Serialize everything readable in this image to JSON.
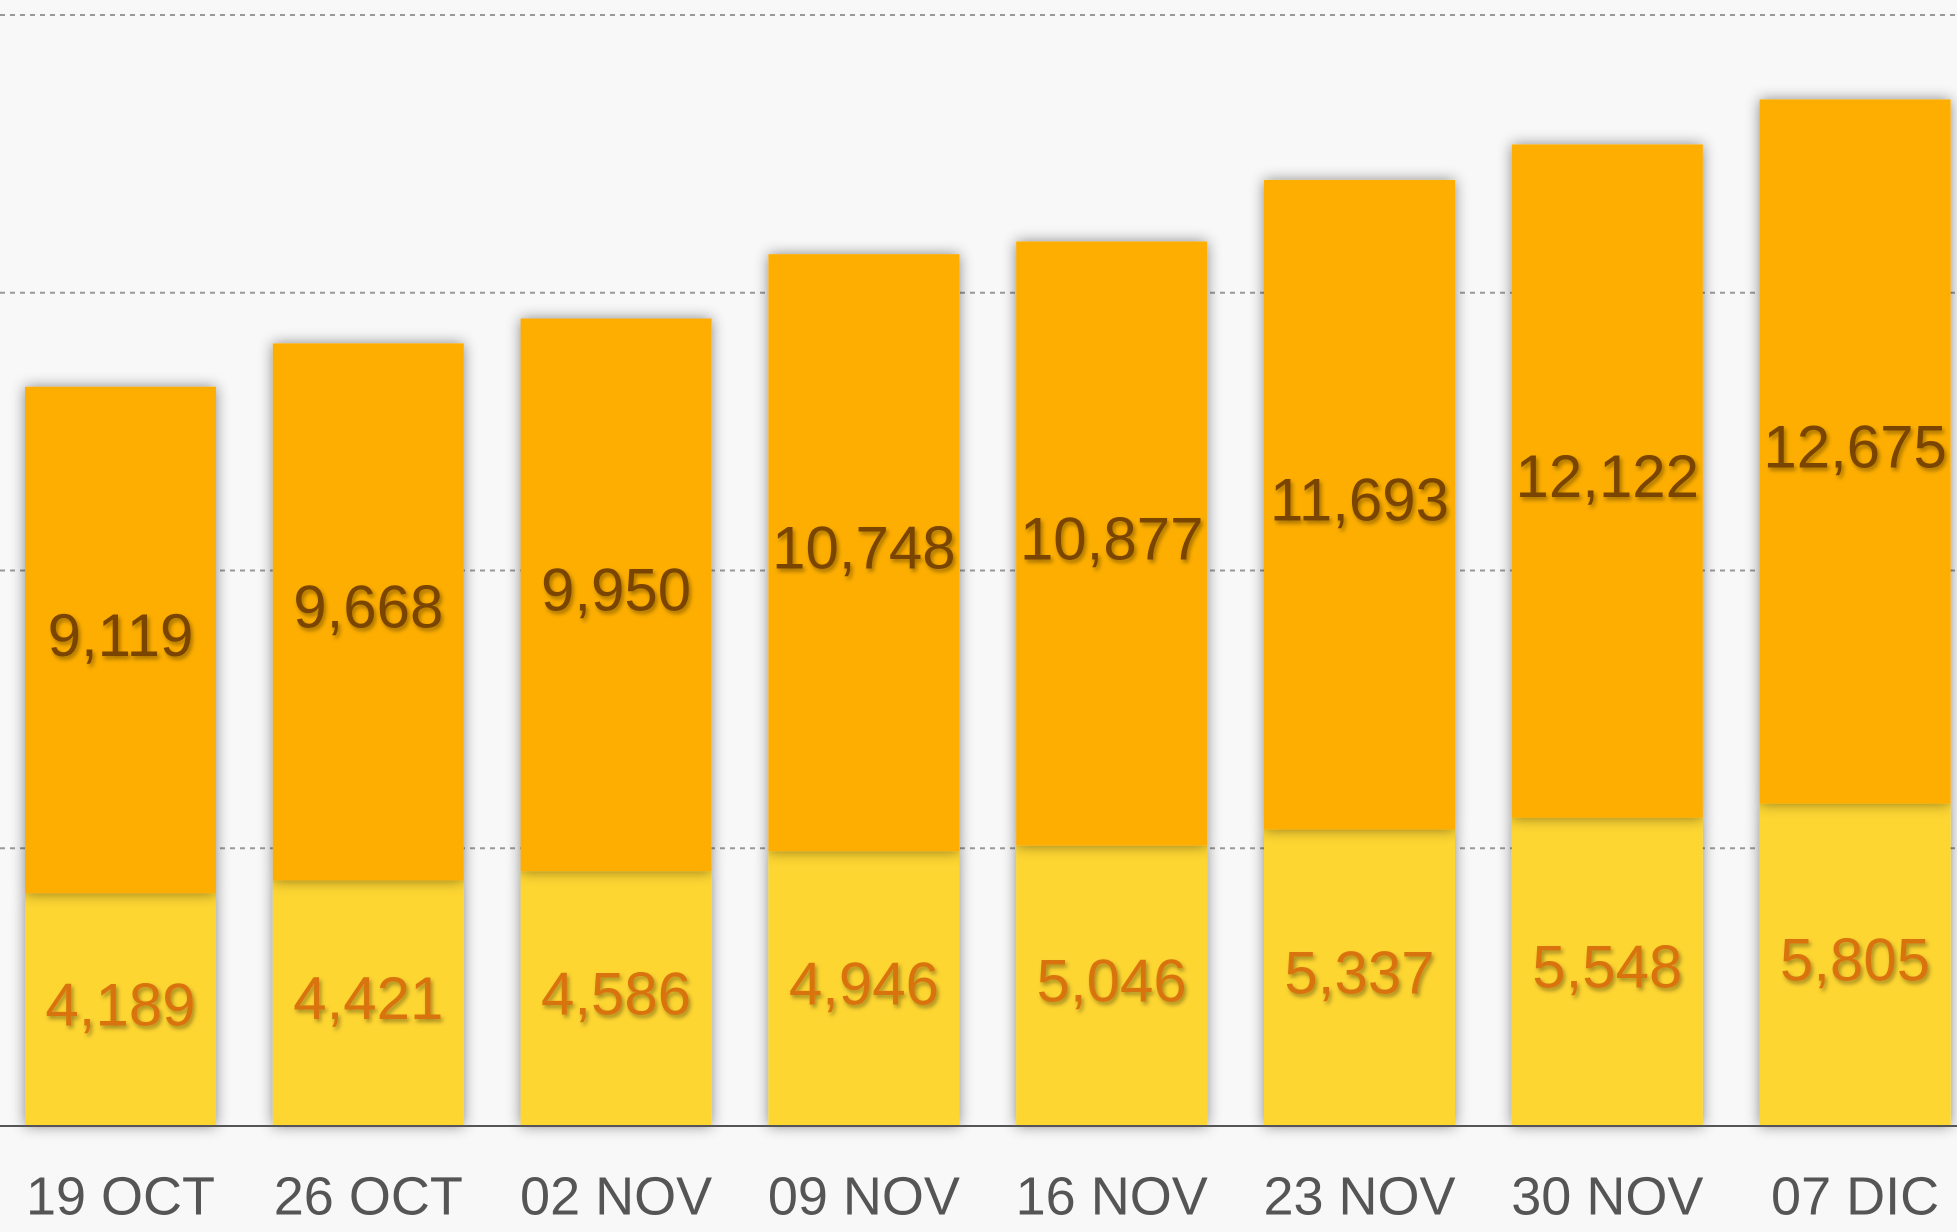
{
  "chart_data": {
    "type": "stacked_bar",
    "categories": [
      "19 OCT",
      "26 OCT",
      "02 NOV",
      "09 NOV",
      "16 NOV",
      "23 NOV",
      "30 NOV",
      "07 DIC"
    ],
    "series": [
      {
        "color": "#fed631",
        "values": [
          4189,
          4421,
          4586,
          4946,
          5046,
          5337,
          5548,
          5805
        ],
        "value_labels": [
          "4,189",
          "4,421",
          "4,586",
          "4,946",
          "5,046",
          "5,337",
          "5,548",
          "5,805"
        ]
      },
      {
        "color": "#fdae00",
        "values": [
          9119,
          9668,
          9950,
          10748,
          10877,
          11693,
          12122,
          12675
        ],
        "value_labels": [
          "9,119",
          "9,668",
          "9,950",
          "10,748",
          "10,877",
          "11,693",
          "12,122",
          "12,675"
        ]
      }
    ],
    "ylim": [
      0,
      20000
    ],
    "yticks": [
      5000,
      10000,
      15000,
      20000
    ],
    "grid": true
  }
}
